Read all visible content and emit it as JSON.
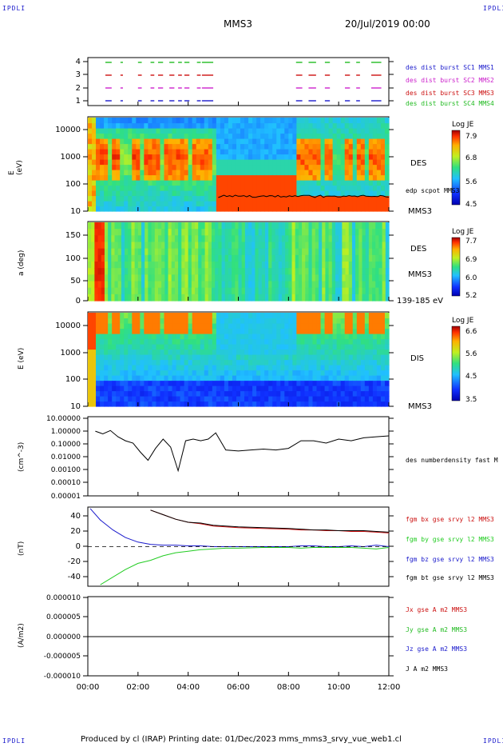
{
  "header": {
    "corner_tl": "IPDLI",
    "corner_tr": "IPDLI",
    "corner_bl": "IPDLI",
    "corner_br": "IPDLI",
    "spacecraft": "MMS3",
    "date": "20/Jul/2019 00:00"
  },
  "footer": {
    "text": "Produced by cl (IRAP)   Printing date: 01/Dec/2023   mms_mms3_srvy_vue_web1.cl"
  },
  "colors": {
    "mms1": "#1a1acc",
    "mms2": "#cc22cc",
    "mms3": "#cc1111",
    "mms4": "#22bb22",
    "bx": "#cc1111",
    "by": "#22cc22",
    "bz": "#1a1acc",
    "bt": "#000000"
  },
  "chart_data": [
    {
      "type": "scatter",
      "panel": "burst",
      "yticks": [
        "4",
        "3",
        "2",
        "1"
      ],
      "legend": [
        "des dist burst SC1 MMS1",
        "des dist burst SC2 MMS2",
        "des dist burst SC3 MMS3",
        "des dist burst SC4 MMS4"
      ],
      "intervals_hours": [
        [
          0.7,
          0.95
        ],
        [
          1.3,
          1.4
        ],
        [
          2.0,
          2.15
        ],
        [
          2.5,
          2.65
        ],
        [
          2.8,
          3.0
        ],
        [
          3.25,
          3.45
        ],
        [
          3.6,
          3.75
        ],
        [
          3.85,
          4.05
        ],
        [
          4.35,
          4.5
        ],
        [
          4.55,
          5.0
        ],
        [
          8.3,
          8.55
        ],
        [
          8.8,
          9.1
        ],
        [
          9.45,
          9.65
        ],
        [
          10.25,
          10.45
        ],
        [
          10.7,
          10.85
        ],
        [
          11.3,
          11.7
        ]
      ]
    },
    {
      "type": "heatmap",
      "panel": "des-energy",
      "ylabel": "E (eV)",
      "yticks": [
        "10000",
        "1000",
        "100",
        "10"
      ],
      "label": "DES",
      "sublabel": "MMS3",
      "overlay_label": "edp scpot MMS3",
      "colorbar_title": "Log JE",
      "colorbar_ticks": [
        "7.9",
        "6.8",
        "5.6",
        "4.5"
      ]
    },
    {
      "type": "heatmap",
      "panel": "des-pitch",
      "ylabel": "a (deg)",
      "yticks": [
        "150",
        "100",
        "50",
        "0"
      ],
      "label": "DES",
      "sublabel": "MMS3",
      "energy_range": "139-185 eV",
      "colorbar_title": "Log JE",
      "colorbar_ticks": [
        "7.7",
        "6.9",
        "6.0",
        "5.2"
      ]
    },
    {
      "type": "heatmap",
      "panel": "dis-energy",
      "ylabel": "E (eV)",
      "yticks": [
        "10000",
        "1000",
        "100",
        "10"
      ],
      "label": "DIS",
      "sublabel": "MMS3",
      "colorbar_title": "Log JE",
      "colorbar_ticks": [
        "6.6",
        "5.6",
        "4.5",
        "3.5"
      ]
    },
    {
      "type": "line",
      "panel": "density",
      "ylabel": "(cm^-3)",
      "yticks": [
        "10.00000",
        "1.00000",
        "0.10000",
        "0.01000",
        "0.00100",
        "0.00010",
        "0.00001"
      ],
      "legend": [
        "des numberdensity fast M"
      ],
      "x_hours": [
        0.3,
        0.6,
        0.9,
        1.2,
        1.5,
        1.8,
        2.1,
        2.4,
        2.7,
        3.0,
        3.3,
        3.6,
        3.9,
        4.2,
        4.5,
        4.8,
        5.1,
        5.5,
        6.0,
        6.5,
        7.0,
        7.5,
        8.0,
        8.5,
        9.0,
        9.5,
        10.0,
        10.5,
        11.0,
        11.5,
        12.0
      ],
      "y": [
        0.8,
        0.5,
        0.9,
        0.3,
        0.15,
        0.1,
        0.02,
        0.005,
        0.04,
        0.2,
        0.05,
        0.0008,
        0.15,
        0.2,
        0.15,
        0.2,
        0.6,
        0.03,
        0.025,
        0.03,
        0.035,
        0.03,
        0.04,
        0.15,
        0.15,
        0.1,
        0.2,
        0.15,
        0.25,
        0.3,
        0.35
      ]
    },
    {
      "type": "line",
      "panel": "magnetic-field",
      "ylabel": "(nT)",
      "yticks": [
        "40",
        "20",
        "0",
        "-20",
        "-40"
      ],
      "legend": [
        "fgm bx gse srvy l2 MMS3",
        "fgm by gse srvy l2 MMS3",
        "fgm bz gse srvy l2 MMS3",
        "fgm bt gse srvy l2 MMS3"
      ],
      "x_hours": [
        0.1,
        0.5,
        1,
        1.5,
        2,
        2.5,
        3,
        3.5,
        4,
        4.5,
        5,
        5.5,
        6,
        7,
        8,
        8.5,
        9,
        9.5,
        10,
        10.5,
        11,
        11.5,
        12
      ],
      "series": [
        {
          "name": "fgm bx gse srvy l2 MMS3",
          "values": [
            null,
            null,
            null,
            null,
            null,
            48,
            42,
            36,
            32,
            30,
            27,
            26,
            25,
            24,
            23,
            22,
            22,
            21,
            21,
            20,
            20,
            19,
            18
          ]
        },
        {
          "name": "fgm by gse srvy l2 MMS3",
          "values": [
            null,
            -50,
            -40,
            -30,
            -22,
            -18,
            -12,
            -8,
            -6,
            -4,
            -3,
            -2,
            -2,
            -1,
            -1,
            -2,
            -1,
            -1,
            -1,
            -1,
            -2,
            -3,
            -1
          ]
        },
        {
          "name": "fgm bz gse srvy l2 MMS3",
          "values": [
            50,
            35,
            22,
            12,
            6,
            3,
            2,
            2,
            1,
            1,
            0,
            0,
            0,
            0,
            0,
            1,
            1,
            0,
            0,
            1,
            0,
            2,
            0
          ]
        },
        {
          "name": "fgm bt gse srvy l2 MMS3",
          "values": [
            null,
            null,
            null,
            null,
            null,
            48,
            42,
            36,
            32,
            31,
            28,
            27,
            26,
            25,
            24,
            23,
            22,
            22,
            21,
            21,
            21,
            20,
            19
          ]
        }
      ]
    },
    {
      "type": "line",
      "panel": "current-density",
      "ylabel": "(A/m2)",
      "yticks": [
        "0.000010",
        "0.000005",
        "0.000000",
        "-0.000005",
        "-0.000010"
      ],
      "legend": [
        "Jx gse A m2 MMS3",
        "Jy gse A m2 MMS3",
        "Jz gse A m2 MMS3",
        "J A m2 MMS3"
      ],
      "ylim": [
        -1e-05,
        1e-05
      ]
    }
  ],
  "time_axis": {
    "ticks": [
      "00:00",
      "02:00",
      "04:00",
      "06:00",
      "08:00",
      "10:00",
      "12:00"
    ]
  }
}
